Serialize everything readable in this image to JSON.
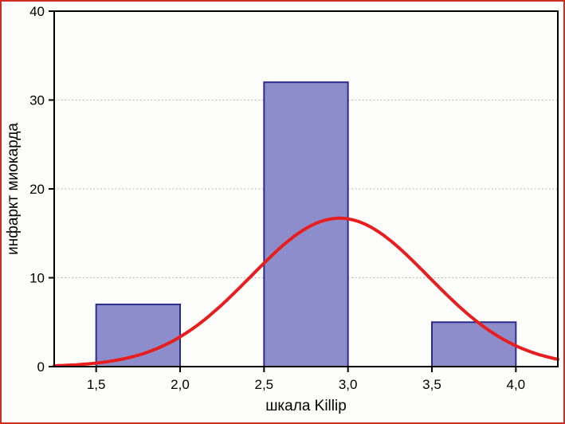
{
  "figure": {
    "frame_border_color": "#cf2e21",
    "background_color": "#ffffff"
  },
  "chart_data": {
    "type": "histogram",
    "title": "",
    "xlabel": "шкала Killip",
    "ylabel": "инфаркт миокарда",
    "xlim": [
      1.25,
      4.25
    ],
    "ylim": [
      0,
      40
    ],
    "x_ticks": [
      1.5,
      2.0,
      2.5,
      3.0,
      3.5,
      4.0
    ],
    "x_tick_labels": [
      "1,5",
      "2,0",
      "2,5",
      "3,0",
      "3,5",
      "4,0"
    ],
    "y_ticks": [
      0,
      10,
      20,
      30,
      40
    ],
    "y_tick_labels": [
      "0",
      "10",
      "20",
      "30",
      "40"
    ],
    "grid": "horizontal-dotted",
    "gridline_color": "#a8a8a8",
    "plot_border_color": "#000000",
    "bin_width": 0.5,
    "bars": [
      {
        "x_start": 1.5,
        "x_end": 2.0,
        "count": 7
      },
      {
        "x_start": 2.5,
        "x_end": 3.0,
        "count": 32
      },
      {
        "x_start": 3.5,
        "x_end": 4.0,
        "count": 5
      }
    ],
    "bar_fill": "#8d8dcb",
    "bar_border": "#2b2b8f",
    "fit_curve": {
      "type": "normal",
      "mean": 2.95,
      "sd": 0.53,
      "peak": 16.7,
      "color": "#e81e1e"
    }
  }
}
